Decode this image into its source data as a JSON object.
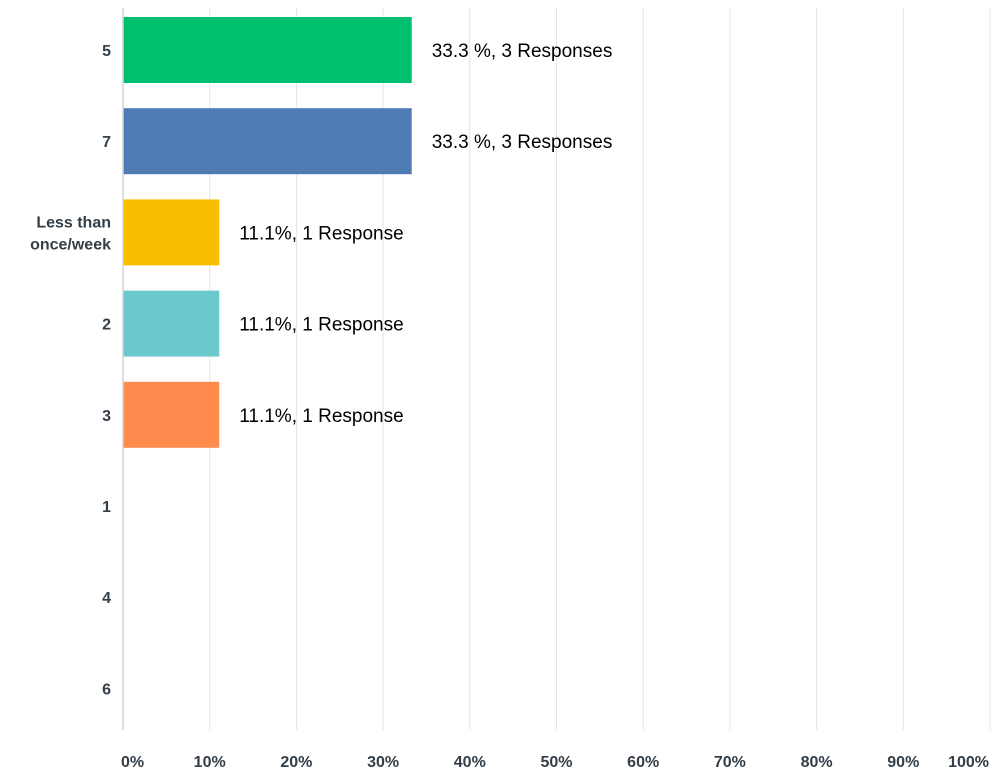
{
  "chart_data": {
    "type": "bar",
    "orientation": "horizontal",
    "categories": [
      "5",
      "7",
      "Less than once/week",
      "2",
      "3",
      "1",
      "4",
      "6"
    ],
    "category_lines": [
      [
        "5"
      ],
      [
        "7"
      ],
      [
        "Less than",
        "once/week"
      ],
      [
        "2"
      ],
      [
        "3"
      ],
      [
        "1"
      ],
      [
        "4"
      ],
      [
        "6"
      ]
    ],
    "values": [
      33.3,
      33.3,
      11.1,
      11.1,
      11.1,
      0,
      0,
      0
    ],
    "data_labels": [
      "33.3 %, 3 Responses",
      "33.3 %, 3 Responses",
      "11.1%, 1 Response",
      "11.1%, 1 Response",
      "11.1%, 1 Response",
      "",
      "",
      ""
    ],
    "colors": [
      "#00bf6f",
      "#507cb6",
      "#f9be00",
      "#6bc8cd",
      "#ff8b4f",
      "#a0a0a0",
      "#a0a0a0",
      "#a0a0a0"
    ],
    "xlim": [
      0,
      100
    ],
    "x_ticks": [
      0,
      10,
      20,
      30,
      40,
      50,
      60,
      70,
      80,
      90,
      100
    ],
    "x_tick_labels": [
      "0%",
      "10%",
      "20%",
      "30%",
      "40%",
      "50%",
      "60%",
      "70%",
      "80%",
      "90%",
      "100%"
    ],
    "grid": true,
    "title": "",
    "xlabel": "",
    "ylabel": ""
  }
}
